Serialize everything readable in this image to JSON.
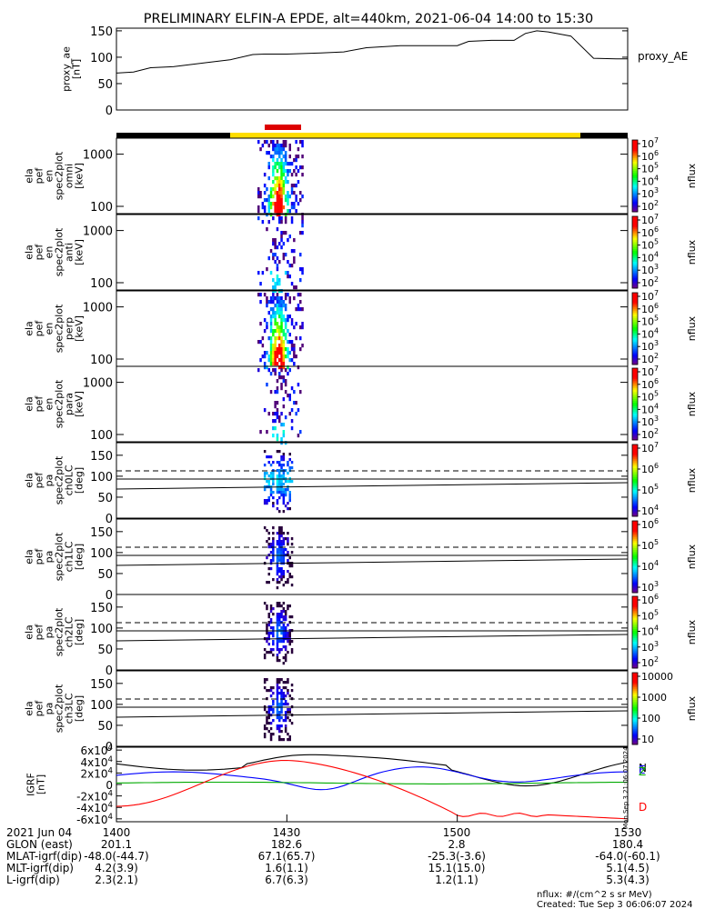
{
  "title": "PRELIMINARY ELFIN-A EPDE, alt=440km, 2021-06-04 14:00 to 15:30",
  "chart_data": [
    {
      "type": "line",
      "panel": "proxy_ae",
      "ylabel_lines": [
        "proxy_ae",
        "[nT]"
      ],
      "legend": "proxy_AE",
      "y_ticks": [
        "0",
        "50",
        "100",
        "150"
      ],
      "ylim": [
        0,
        155
      ],
      "x_minutes": [
        0,
        3,
        6,
        10,
        16,
        20,
        24,
        26,
        30,
        36,
        40,
        44,
        50,
        54,
        56,
        60,
        62,
        66,
        70,
        72,
        74,
        76,
        80,
        84,
        88,
        90
      ],
      "values": [
        70,
        72,
        80,
        82,
        90,
        95,
        105,
        106,
        106,
        108,
        110,
        118,
        122,
        122,
        122,
        122,
        130,
        132,
        132,
        145,
        150,
        148,
        140,
        98,
        97,
        97
      ]
    },
    {
      "type": "heatmap",
      "panel": "omni",
      "ylabel_lines": [
        "ela",
        "pef",
        "en",
        "spec2plot",
        "omni",
        "[keV]"
      ],
      "y_ticks": [
        "100",
        "1000"
      ],
      "zlabel": "nflux",
      "z_ticks": [
        "10^2",
        "10^3",
        "10^4",
        "10^5",
        "10^6",
        "10^7"
      ]
    },
    {
      "type": "heatmap",
      "panel": "anti",
      "ylabel_lines": [
        "ela",
        "pef",
        "en",
        "spec2plot",
        "anti",
        "[keV]"
      ],
      "y_ticks": [
        "100",
        "1000"
      ],
      "zlabel": "nflux",
      "z_ticks": [
        "10^2",
        "10^3",
        "10^4",
        "10^5",
        "10^6",
        "10^7"
      ]
    },
    {
      "type": "heatmap",
      "panel": "perp",
      "ylabel_lines": [
        "ela",
        "pef",
        "en",
        "spec2plot",
        "perp",
        "[keV]"
      ],
      "y_ticks": [
        "100",
        "1000"
      ],
      "zlabel": "nflux",
      "z_ticks": [
        "10^2",
        "10^3",
        "10^4",
        "10^5",
        "10^6",
        "10^7"
      ]
    },
    {
      "type": "heatmap",
      "panel": "para",
      "ylabel_lines": [
        "ela",
        "pef",
        "en",
        "spec2plot",
        "para",
        "[keV]"
      ],
      "y_ticks": [
        "100",
        "1000"
      ],
      "zlabel": "nflux",
      "z_ticks": [
        "10^2",
        "10^3",
        "10^4",
        "10^5",
        "10^6",
        "10^7"
      ]
    },
    {
      "type": "heatmap",
      "panel": "ch0LC",
      "ylabel_lines": [
        "ela",
        "pef",
        "pa",
        "spec2plot",
        "ch0LC",
        "[deg]"
      ],
      "y_ticks": [
        "0",
        "50",
        "100",
        "150"
      ],
      "ylim": [
        0,
        180
      ],
      "zlabel": "nflux",
      "z_ticks": [
        "10^4",
        "10^5",
        "10^6",
        "10^7"
      ]
    },
    {
      "type": "heatmap",
      "panel": "ch1LC",
      "ylabel_lines": [
        "ela",
        "pef",
        "pa",
        "spec2plot",
        "ch1LC",
        "[deg]"
      ],
      "y_ticks": [
        "0",
        "50",
        "100",
        "150"
      ],
      "ylim": [
        0,
        180
      ],
      "zlabel": "nflux",
      "z_ticks": [
        "10^3",
        "10^4",
        "10^5",
        "10^6"
      ]
    },
    {
      "type": "heatmap",
      "panel": "ch2LC",
      "ylabel_lines": [
        "ela",
        "pef",
        "pa",
        "spec2plot",
        "ch2LC",
        "[deg]"
      ],
      "y_ticks": [
        "0",
        "50",
        "100",
        "150"
      ],
      "ylim": [
        0,
        180
      ],
      "zlabel": "nflux",
      "z_ticks": [
        "10^2",
        "10^3",
        "10^4",
        "10^5",
        "10^6"
      ]
    },
    {
      "type": "heatmap",
      "panel": "ch3LC",
      "ylabel_lines": [
        "ela",
        "pef",
        "pa",
        "spec2plot",
        "ch3LC",
        "[deg]"
      ],
      "y_ticks": [
        "0",
        "50",
        "100",
        "150"
      ],
      "ylim": [
        0,
        180
      ],
      "zlabel": "nflux",
      "z_ticks": [
        "10",
        "100",
        "1000",
        "10000"
      ]
    },
    {
      "type": "line",
      "panel": "igrf",
      "ylabel_lines": [
        "IGRF",
        "[nT]"
      ],
      "y_ticks": [
        "-6x10^4",
        "-4x10^4",
        "-2x10^4",
        "0",
        "2x10^4",
        "4x10^4",
        "6x10^4"
      ],
      "ylim": [
        -65000,
        65000
      ],
      "series": [
        {
          "name": "N",
          "color": "#000000"
        },
        {
          "name": "E",
          "color": "#0000ff"
        },
        {
          "name": "Z",
          "color": "#00aa00"
        },
        {
          "name": "D",
          "color": "#ff0000"
        }
      ]
    }
  ],
  "x_axis": {
    "rows": [
      {
        "label": "2021 Jun 04",
        "values": [
          "1400",
          "1430",
          "1500",
          "1530"
        ]
      },
      {
        "label": "GLON (east)",
        "values": [
          "201.1",
          "182.6",
          "2.8",
          "180.4"
        ]
      },
      {
        "label": "MLAT-igrf(dip)",
        "values": [
          "-48.0(-44.7)",
          "67.1(65.7)",
          "-25.3(-3.6)",
          "-64.0(-60.1)"
        ]
      },
      {
        "label": "MLT-igrf(dip)",
        "values": [
          "4.2(3.9)",
          "1.6(1.1)",
          "15.1(15.0)",
          "5.1(4.5)"
        ]
      },
      {
        "label": "L-igrf(dip)",
        "values": [
          "2.3(2.1)",
          "6.7(6.3)",
          "1.2(1.1)",
          "5.3(4.3)"
        ]
      }
    ]
  },
  "footer": {
    "units": "nflux: #/(cm^2 s sr MeV)",
    "created": "Created: Tue Sep  3 06:06:07 2024",
    "stamp": "Mon Sep  3 21:06:07 2024"
  }
}
